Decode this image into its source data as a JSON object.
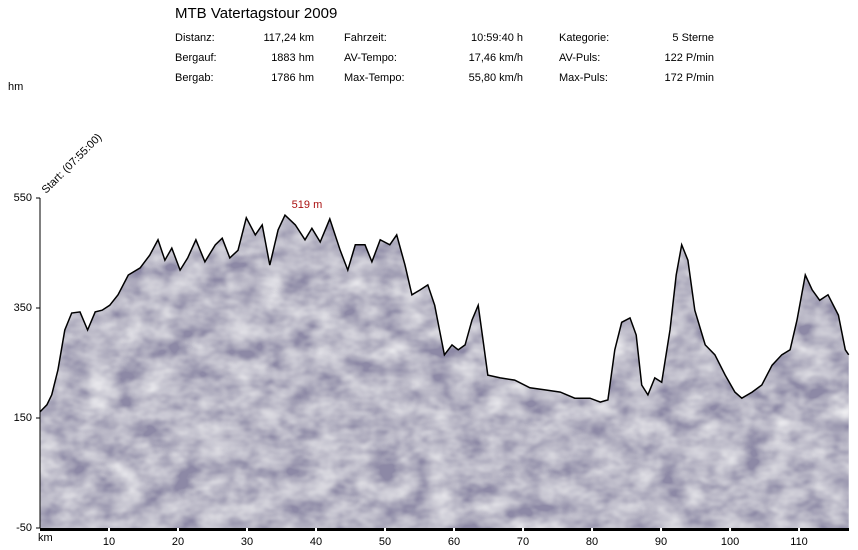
{
  "chart_data": {
    "type": "area",
    "title": "MTB Vatertagstour 2009",
    "stats": [
      [
        "Distanz:",
        "117,24 km",
        "Fahrzeit:",
        "10:59:40 h",
        "Kategorie:",
        "5 Sterne"
      ],
      [
        "Bergauf:",
        "1883 hm",
        "AV-Tempo:",
        "17,46 km/h",
        "AV-Puls:",
        "122 P/min"
      ],
      [
        "Bergab:",
        "1786 hm",
        "Max-Tempo:",
        "55,80 km/h",
        "Max-Puls:",
        "172 P/min"
      ]
    ],
    "y_label": "hm",
    "x_label": "km",
    "start_label": "Start: (07:55:00)",
    "annotation": {
      "text": "519 m",
      "x": 35.5,
      "value": 519
    },
    "color": "#8d89a6",
    "line_color": "#000000",
    "annotation_color": "#aa1111",
    "x": [
      0,
      1.0,
      1.7,
      2.6,
      3.6,
      4.6,
      5.8,
      6.9,
      8.0,
      9.0,
      10.1,
      11.3,
      12.8,
      14.5,
      15.9,
      17.1,
      18.1,
      19.1,
      20.3,
      21.4,
      22.6,
      23.9,
      25.4,
      26.4,
      27.5,
      28.7,
      29.9,
      31.2,
      32.2,
      33.3,
      34.5,
      35.5,
      37.0,
      38.4,
      39.4,
      40.6,
      42.0,
      43.5,
      44.6,
      45.7,
      47.1,
      48.1,
      49.3,
      50.7,
      51.7,
      52.9,
      53.9,
      55.1,
      56.2,
      57.2,
      57.9,
      58.6,
      59.7,
      60.6,
      61.6,
      62.6,
      63.5,
      64.2,
      64.9,
      66.7,
      68.8,
      71.0,
      73.2,
      75.4,
      77.5,
      79.7,
      81.2,
      82.3,
      83.3,
      84.3,
      85.5,
      86.4,
      87.2,
      88.1,
      89.1,
      90.1,
      91.3,
      92.2,
      93.0,
      93.9,
      94.9,
      96.4,
      97.8,
      99.3,
      100.7,
      101.7,
      103.2,
      104.6,
      106.1,
      107.5,
      108.7,
      109.7,
      110.9,
      111.9,
      113.0,
      114.2,
      115.7,
      116.7,
      117.2
    ],
    "values": [
      161,
      174,
      192,
      237,
      310,
      341,
      343,
      310,
      343,
      346,
      355,
      374,
      410,
      423,
      446,
      474,
      437,
      459,
      419,
      441,
      474,
      434,
      465,
      477,
      441,
      455,
      514,
      483,
      501,
      428,
      492,
      519,
      501,
      474,
      495,
      470,
      512,
      455,
      419,
      465,
      465,
      434,
      474,
      465,
      483,
      428,
      374,
      383,
      392,
      355,
      310,
      265,
      283,
      274,
      283,
      328,
      355,
      292,
      228,
      223,
      219,
      205,
      201,
      197,
      186,
      186,
      179,
      183,
      274,
      324,
      332,
      301,
      210,
      192,
      223,
      215,
      310,
      410,
      465,
      437,
      346,
      283,
      265,
      228,
      197,
      186,
      197,
      210,
      246,
      265,
      274,
      328,
      410,
      383,
      364,
      374,
      337,
      274,
      265
    ],
    "xlim": [
      0,
      117.24
    ],
    "xticks": [
      10,
      20,
      30,
      40,
      50,
      60,
      70,
      80,
      90,
      100,
      110
    ],
    "ylim": [
      -50,
      550
    ],
    "yticks": [
      -50,
      150,
      350,
      550
    ]
  }
}
